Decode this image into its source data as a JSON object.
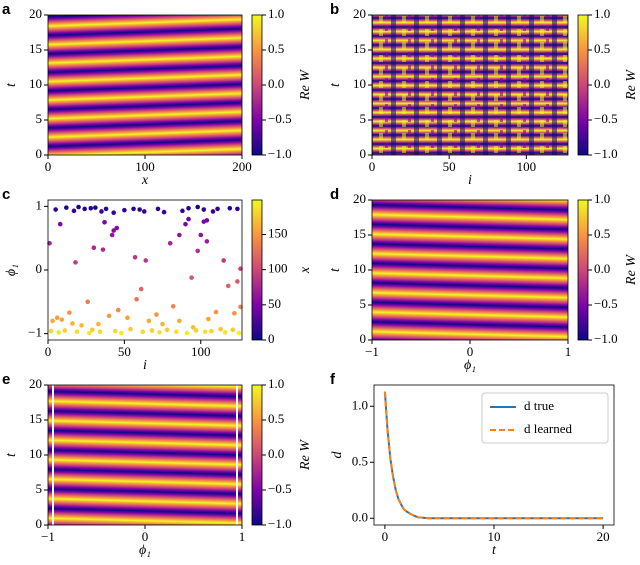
{
  "charts": [
    {
      "type": "heatmap",
      "panel": "a",
      "xlabel": "x",
      "ylabel": "t",
      "xlim": [
        0,
        200
      ],
      "xticks": [
        0,
        100,
        200
      ],
      "ylim": [
        0,
        20
      ],
      "yticks": [
        0,
        5,
        10,
        15,
        20
      ],
      "colorbar": {
        "label": "Re W",
        "lim": [
          -1,
          1
        ],
        "ticks": [
          {
            "value": -1,
            "label": "−1.0"
          },
          {
            "value": -0.5,
            "label": "−0.5"
          },
          {
            "value": 0,
            "label": "0.0"
          },
          {
            "value": 0.5,
            "label": "0.5"
          },
          {
            "value": 1,
            "label": "1.0"
          }
        ]
      }
    },
    {
      "type": "heatmap",
      "panel": "b",
      "xlabel": "i",
      "ylabel": "t",
      "xlim": [
        0,
        127
      ],
      "xticks": [
        0,
        50,
        100
      ],
      "ylim": [
        0,
        20
      ],
      "yticks": [
        0,
        5,
        10,
        15,
        20
      ],
      "colorbar": {
        "label": "Re W",
        "lim": [
          -1,
          1
        ],
        "ticks": [
          {
            "value": -1,
            "label": "−1.0"
          },
          {
            "value": -0.5,
            "label": "−0.5"
          },
          {
            "value": 0,
            "label": "0.0"
          },
          {
            "value": 0.5,
            "label": "0.5"
          },
          {
            "value": 1,
            "label": "1.0"
          }
        ]
      }
    },
    {
      "type": "scatter",
      "panel": "c",
      "xlabel": "i",
      "ylabel": "ϕ₁",
      "xlim": [
        0,
        127
      ],
      "xticks": [
        0,
        50,
        100
      ],
      "ylim": [
        -1.1,
        1.1
      ],
      "yticks": [
        {
          "value": -1,
          "label": "−1"
        },
        0,
        1
      ],
      "x": [
        5,
        12,
        17,
        20,
        24,
        28,
        31,
        35,
        38,
        43,
        50,
        56,
        60,
        63,
        72,
        76,
        88,
        92,
        98,
        102,
        108,
        111,
        119,
        124,
        1,
        8,
        37,
        43,
        45,
        42,
        86,
        90,
        92,
        98,
        102,
        104,
        100,
        57,
        64,
        18,
        30,
        36,
        80,
        104,
        115,
        126,
        124,
        6,
        3,
        9,
        14,
        16,
        22,
        26,
        33,
        40,
        46,
        52,
        58,
        66,
        71,
        75,
        82,
        86,
        95,
        105,
        110,
        118,
        122,
        126,
        61,
        94,
        2,
        7,
        11,
        19,
        27,
        29,
        34,
        44,
        48,
        54,
        62,
        68,
        73,
        78,
        84,
        91,
        97,
        103,
        107,
        113,
        116,
        121,
        125
      ],
      "values": [
        0.95,
        0.98,
        0.93,
        0.99,
        0.96,
        0.97,
        0.98,
        0.92,
        0.96,
        0.9,
        0.94,
        0.96,
        0.95,
        0.92,
        0.96,
        0.91,
        0.93,
        0.97,
        0.99,
        0.95,
        0.92,
        0.96,
        0.97,
        0.96,
        0.42,
        0.72,
        0.75,
        0.62,
        0.66,
        0.55,
        0.55,
        0.72,
        0.8,
        0.3,
        0.76,
        0.78,
        0.55,
        0.2,
        0.15,
        0.12,
        0.35,
        0.32,
        0.42,
        0.45,
        0.15,
        0.02,
        -0.18,
        -0.75,
        -0.8,
        -0.78,
        -0.67,
        -0.84,
        -0.87,
        -0.5,
        -0.85,
        -0.72,
        -0.63,
        -0.75,
        -0.46,
        -0.8,
        -0.7,
        -0.85,
        -0.57,
        -0.8,
        -0.9,
        -0.77,
        -0.66,
        -0.25,
        -0.68,
        -0.58,
        -0.3,
        -0.12,
        -0.96,
        -0.98,
        -0.95,
        -0.97,
        -0.99,
        -0.94,
        -0.97,
        -0.96,
        -0.99,
        -0.93,
        -0.97,
        -0.95,
        -0.98,
        -0.94,
        -0.97,
        -0.99,
        -0.95,
        -0.97,
        -0.96,
        -0.93,
        -0.98,
        -0.94,
        -0.99
      ],
      "color_values": [
        10,
        5,
        15,
        3,
        9,
        8,
        6,
        16,
        10,
        18,
        13,
        10,
        11,
        15,
        10,
        17,
        15,
        8,
        4,
        11,
        15,
        10,
        8,
        10,
        73,
        49,
        46,
        57,
        53,
        63,
        63,
        49,
        41,
        81,
        45,
        43,
        62,
        87,
        90,
        92,
        78,
        80,
        73,
        70,
        90,
        99,
        112,
        154,
        160,
        157,
        146,
        164,
        168,
        133,
        165,
        151,
        143,
        154,
        130,
        160,
        149,
        165,
        138,
        160,
        172,
        156,
        146,
        116,
        148,
        139,
        119,
        108,
        182,
        188,
        180,
        185,
        192,
        178,
        186,
        183,
        193,
        176,
        185,
        180,
        189,
        178,
        186,
        194,
        180,
        186,
        182,
        176,
        190,
        178,
        195
      ],
      "colorbar": {
        "label": "x",
        "lim": [
          0,
          199
        ],
        "ticks": [
          0,
          50,
          100,
          150
        ]
      }
    },
    {
      "type": "heatmap",
      "panel": "d",
      "xlabel": "ϕ₁",
      "ylabel": "t",
      "xlim": [
        -1,
        1
      ],
      "xticks": [
        {
          "value": -1,
          "label": "−1"
        },
        0,
        1
      ],
      "ylim": [
        0,
        20
      ],
      "yticks": [
        0,
        5,
        10,
        15,
        20
      ],
      "colorbar": {
        "label": "Re W",
        "lim": [
          -1,
          1
        ],
        "ticks": [
          {
            "value": -1,
            "label": "−1.0"
          },
          {
            "value": -0.5,
            "label": "−0.5"
          },
          {
            "value": 0,
            "label": "0.0"
          },
          {
            "value": 0.5,
            "label": "0.5"
          },
          {
            "value": 1,
            "label": "1.0"
          }
        ]
      }
    },
    {
      "type": "heatmap",
      "panel": "e",
      "xlabel": "ϕ₁",
      "ylabel": "t",
      "xlim": [
        -1,
        1
      ],
      "xticks": [
        {
          "value": -1,
          "label": "−1"
        },
        0,
        1
      ],
      "ylim": [
        0,
        20
      ],
      "yticks": [
        0,
        5,
        10,
        15,
        20
      ],
      "colorbar": {
        "label": "Re W",
        "lim": [
          -1,
          1
        ],
        "ticks": [
          {
            "value": -1,
            "label": "−1.0"
          },
          {
            "value": -0.5,
            "label": "−0.5"
          },
          {
            "value": 0,
            "label": "0.0"
          },
          {
            "value": 0.5,
            "label": "0.5"
          },
          {
            "value": 1,
            "label": "1.0"
          }
        ]
      }
    },
    {
      "type": "line",
      "panel": "f",
      "xlabel": "t",
      "ylabel": "d",
      "xlim": [
        -1,
        21
      ],
      "xticks": [
        0,
        10,
        20
      ],
      "ylim": [
        -0.06,
        1.19
      ],
      "yticks": [
        {
          "value": 0,
          "label": "0.0"
        },
        {
          "value": 0.5,
          "label": "0.5"
        },
        {
          "value": 1,
          "label": "1.0"
        }
      ],
      "legend": "upper right",
      "x": [
        0,
        0.25,
        0.5,
        0.75,
        1,
        1.25,
        1.5,
        1.75,
        2,
        2.5,
        3,
        4,
        6,
        10,
        15,
        20
      ],
      "series": [
        {
          "name": "d true",
          "color": "#1f77b4",
          "style": "solid",
          "values": [
            1.13,
            0.78,
            0.53,
            0.37,
            0.25,
            0.17,
            0.12,
            0.08,
            0.06,
            0.03,
            0.01,
            0,
            0,
            0,
            0,
            0
          ]
        },
        {
          "name": "d learned",
          "color": "#ff7f0e",
          "style": "dashed",
          "values": [
            1.13,
            0.78,
            0.53,
            0.37,
            0.25,
            0.17,
            0.12,
            0.08,
            0.06,
            0.03,
            0.01,
            0,
            0,
            0,
            0,
            0
          ]
        }
      ]
    }
  ]
}
